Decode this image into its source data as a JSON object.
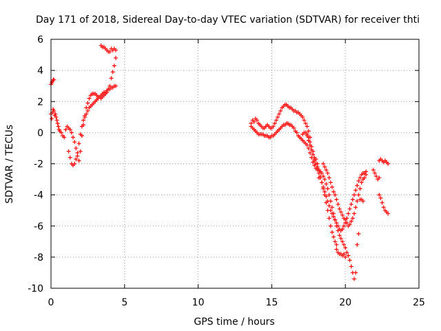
{
  "chart_data": {
    "type": "scatter",
    "title": "Day 171 of 2018, Sidereal Day-to-day VTEC variation (SDTVAR) for receiver thti",
    "xlabel": "GPS time / hours",
    "ylabel": "SDTVAR / TECUs",
    "xlim": [
      0,
      25
    ],
    "ylim": [
      -10,
      6
    ],
    "xticks": [
      0,
      5,
      10,
      15,
      20,
      25
    ],
    "yticks": [
      -10,
      -8,
      -6,
      -4,
      -2,
      0,
      2,
      4,
      6
    ],
    "grid": true,
    "marker": "+",
    "color": "#ff0000",
    "series": [
      {
        "x": [
          0.0,
          0.05,
          0.1,
          0.15,
          0.2,
          0.25,
          0.3,
          0.35,
          0.4,
          0.45,
          0.5,
          0.55,
          0.6,
          0.7,
          0.8,
          0.9,
          1.0,
          1.1,
          1.2,
          1.3,
          1.4,
          1.5,
          1.6,
          1.7,
          1.8,
          1.9,
          2.0,
          2.1,
          2.2,
          2.3,
          2.4,
          2.5,
          2.6,
          2.7,
          2.8,
          2.9,
          3.0,
          3.1,
          3.2,
          3.3,
          3.4,
          3.5,
          3.6,
          3.7,
          3.8,
          3.9,
          4.0,
          4.1,
          4.2,
          4.3,
          4.4
        ],
        "y": [
          1.2,
          0.9,
          1.3,
          1.5,
          1.4,
          1.1,
          1.2,
          1.0,
          0.8,
          0.6,
          0.4,
          0.2,
          0.1,
          0.0,
          -0.2,
          -0.3,
          0.2,
          0.4,
          0.3,
          0.2,
          0.0,
          -0.3,
          -0.6,
          -1.0,
          -1.5,
          -1.8,
          -1.2,
          -0.2,
          0.5,
          1.1,
          1.6,
          1.9,
          2.2,
          2.4,
          2.5,
          2.5,
          2.5,
          2.4,
          2.3,
          2.3,
          2.2,
          2.3,
          2.4,
          2.5,
          2.6,
          2.8,
          3.0,
          3.5,
          3.9,
          4.3,
          4.8
        ]
      },
      {
        "x": [
          0.0,
          0.05,
          0.1,
          0.15,
          0.2
        ],
        "y": [
          3.1,
          3.2,
          3.3,
          3.4,
          3.4
        ]
      },
      {
        "x": [
          1.2,
          1.3,
          1.4,
          1.5,
          1.6,
          1.7,
          1.8,
          1.9,
          2.0,
          2.1,
          2.2,
          2.3,
          2.4,
          2.5,
          2.6,
          2.7,
          2.8,
          2.9,
          3.0,
          3.1,
          3.2,
          3.3,
          3.4,
          3.5,
          3.6,
          3.7,
          3.8,
          3.9,
          4.0,
          4.1,
          4.2,
          4.3,
          4.4
        ],
        "y": [
          -1.2,
          -1.6,
          -2.0,
          -2.1,
          -2.0,
          -1.7,
          -1.3,
          -0.7,
          -0.1,
          0.4,
          0.8,
          1.0,
          1.2,
          1.4,
          1.6,
          1.7,
          1.8,
          1.9,
          2.0,
          2.1,
          2.2,
          2.3,
          2.4,
          2.5,
          2.6,
          2.6,
          2.7,
          2.8,
          2.8,
          2.9,
          2.9,
          3.0,
          3.0
        ]
      },
      {
        "x": [
          3.4,
          3.5,
          3.6,
          3.7,
          3.8,
          3.9,
          4.0,
          4.1,
          4.2,
          4.3,
          4.4
        ],
        "y": [
          5.6,
          5.5,
          5.5,
          5.4,
          5.3,
          5.2,
          5.2,
          5.4,
          5.3,
          5.4,
          5.3
        ]
      },
      {
        "x": [
          13.6,
          13.7,
          13.8,
          13.9,
          14.0,
          14.1,
          14.2,
          14.3,
          14.4,
          14.5,
          14.6,
          14.7,
          14.8,
          14.9,
          15.0,
          15.1,
          15.2,
          15.3,
          15.4,
          15.5,
          15.6,
          15.7,
          15.8,
          15.9,
          16.0,
          16.1,
          16.2,
          16.3,
          16.4,
          16.5,
          16.6,
          16.7,
          16.8,
          16.9,
          17.0,
          17.1,
          17.2,
          17.3,
          17.4,
          17.5,
          17.6
        ],
        "y": [
          0.6,
          0.8,
          0.7,
          0.9,
          0.8,
          0.6,
          0.5,
          0.4,
          0.3,
          0.3,
          0.4,
          0.5,
          0.4,
          0.3,
          0.3,
          0.4,
          0.6,
          0.8,
          1.0,
          1.2,
          1.4,
          1.6,
          1.7,
          1.8,
          1.8,
          1.7,
          1.6,
          1.6,
          1.5,
          1.4,
          1.4,
          1.3,
          1.3,
          1.2,
          1.1,
          1.0,
          0.8,
          0.6,
          0.4,
          0.1,
          -0.3
        ]
      },
      {
        "x": [
          13.6,
          13.7,
          13.8,
          13.9,
          14.0,
          14.1,
          14.2,
          14.3,
          14.4,
          14.5,
          14.6,
          14.7,
          14.8,
          14.9,
          15.0,
          15.1,
          15.2,
          15.3,
          15.4,
          15.5,
          15.6,
          15.7,
          15.8,
          15.9,
          16.0,
          16.1,
          16.2,
          16.3,
          16.4,
          16.5,
          16.6,
          16.7,
          16.8,
          16.9,
          17.0,
          17.1,
          17.2,
          17.3,
          17.4,
          17.5,
          17.6,
          17.7,
          17.8,
          17.9,
          18.0
        ],
        "y": [
          0.4,
          0.3,
          0.2,
          0.1,
          0.0,
          -0.1,
          -0.1,
          -0.1,
          -0.1,
          -0.2,
          -0.2,
          -0.2,
          -0.3,
          -0.3,
          -0.2,
          -0.2,
          -0.1,
          0.0,
          0.1,
          0.2,
          0.3,
          0.4,
          0.5,
          0.5,
          0.6,
          0.6,
          0.5,
          0.5,
          0.4,
          0.3,
          0.1,
          0.0,
          -0.2,
          -0.3,
          -0.4,
          -0.5,
          -0.6,
          -0.7,
          -0.8,
          -1.0,
          -1.3,
          -1.6,
          -1.9,
          -2.1,
          -2.3
        ]
      },
      {
        "x": [
          17.4,
          17.5,
          17.6,
          17.7,
          17.8,
          17.9,
          18.0,
          18.1,
          18.2,
          18.3,
          18.4,
          18.5,
          18.6,
          18.7,
          18.8,
          18.9,
          19.0,
          19.1,
          19.2,
          19.3,
          19.4,
          19.5,
          19.6,
          19.7,
          19.8,
          19.9,
          20.0,
          20.1,
          20.2,
          20.3,
          20.4,
          20.5,
          20.6,
          20.7,
          20.8,
          20.9
        ],
        "y": [
          -0.2,
          -0.5,
          -0.8,
          -1.1,
          -1.4,
          -1.7,
          -2.0,
          -2.2,
          -2.4,
          -2.5,
          -2.6,
          -2.8,
          -3.0,
          -3.3,
          -3.6,
          -4.0,
          -4.4,
          -4.8,
          -5.2,
          -5.6,
          -6.0,
          -6.3,
          -6.6,
          -6.8,
          -7.0,
          -7.2,
          -7.4,
          -7.7,
          -7.9,
          -8.2,
          -8.6,
          -9.0,
          -9.4,
          -9.0,
          -7.2,
          -6.5
        ]
      },
      {
        "x": [
          17.9,
          18.0,
          18.1,
          18.2,
          18.3,
          18.4,
          18.5,
          18.6,
          18.7,
          18.8,
          18.9,
          19.0,
          19.1,
          19.2,
          19.3,
          19.4,
          19.5,
          19.6,
          19.7,
          19.8,
          19.9,
          20.0,
          20.1,
          20.2,
          20.3,
          20.4,
          20.5,
          20.6,
          20.7,
          20.8,
          20.9,
          21.0,
          21.1,
          21.2,
          21.3,
          21.4
        ],
        "y": [
          -1.8,
          -2.0,
          -2.3,
          -2.6,
          -2.9,
          -3.2,
          -3.5,
          -3.8,
          -4.1,
          -4.4,
          -4.7,
          -5.0,
          -5.2,
          -5.4,
          -5.6,
          -5.8,
          -6.0,
          -6.2,
          -6.3,
          -6.2,
          -6.0,
          -5.8,
          -5.5,
          -5.2,
          -4.9,
          -4.6,
          -4.3,
          -4.0,
          -3.7,
          -3.4,
          -3.1,
          -2.9,
          -2.7,
          -2.6,
          -2.6,
          -2.5
        ]
      },
      {
        "x": [
          18.5,
          18.6,
          18.7,
          18.8,
          18.9,
          19.0,
          19.1,
          19.2,
          19.3,
          19.4,
          19.5,
          19.6,
          19.7,
          19.8,
          19.9,
          20.0,
          20.1,
          20.2,
          20.3,
          20.4,
          20.5,
          20.6,
          20.7,
          20.8,
          20.9,
          21.0,
          21.1,
          21.2,
          21.3,
          21.4
        ],
        "y": [
          -2.0,
          -2.2,
          -2.4,
          -2.6,
          -2.9,
          -3.2,
          -3.5,
          -3.8,
          -4.0,
          -4.3,
          -4.6,
          -4.9,
          -5.1,
          -5.3,
          -5.5,
          -5.6,
          -5.8,
          -6.0,
          -5.9,
          -5.7,
          -5.5,
          -5.2,
          -4.8,
          -4.4,
          -4.0,
          -3.6,
          -3.2,
          -3.0,
          -2.9,
          -2.7
        ]
      },
      {
        "x": [
          18.0,
          18.1,
          18.2,
          18.3,
          18.4,
          18.5,
          18.6,
          18.7,
          18.8,
          18.9,
          19.0,
          19.1,
          19.2,
          19.3,
          19.4
        ],
        "y": [
          -1.7,
          -2.0,
          -2.4,
          -2.8,
          -3.2,
          -3.6,
          -4.0,
          -4.5,
          -5.0,
          -5.5,
          -6.0,
          -6.4,
          -6.7,
          -7.0,
          -7.2
        ]
      },
      {
        "x": [
          19.4,
          19.5,
          19.6,
          19.7,
          19.8,
          19.9,
          20.0
        ],
        "y": [
          -7.5,
          -7.7,
          -7.8,
          -7.8,
          -7.9,
          -7.8,
          -8.0
        ]
      },
      {
        "x": [
          21.0,
          21.1,
          21.2
        ],
        "y": [
          -4.3,
          -4.3,
          -4.4
        ]
      },
      {
        "x": [
          21.9,
          22.0,
          22.1,
          22.2,
          22.3
        ],
        "y": [
          -2.4,
          -2.6,
          -2.8,
          -3.0,
          -2.9
        ]
      },
      {
        "x": [
          22.3,
          22.4,
          22.5,
          22.6,
          22.7,
          22.8,
          22.9
        ],
        "y": [
          -1.8,
          -1.7,
          -1.8,
          -1.9,
          -1.8,
          -1.9,
          -2.0
        ]
      },
      {
        "x": [
          22.3,
          22.4,
          22.5,
          22.6,
          22.7,
          22.8,
          22.9
        ],
        "y": [
          -4.0,
          -4.2,
          -4.5,
          -4.8,
          -5.0,
          -5.1,
          -5.2
        ]
      },
      {
        "x": [
          17.1,
          17.2,
          17.3,
          17.4,
          17.5,
          17.6,
          17.7,
          17.8,
          17.9,
          18.0,
          18.1,
          18.2
        ],
        "y": [
          -0.1,
          0.0,
          0.0,
          -0.1,
          -0.3,
          -0.6,
          -0.9,
          -1.2,
          -1.6,
          -2.0,
          -2.4,
          -2.9
        ]
      }
    ]
  }
}
